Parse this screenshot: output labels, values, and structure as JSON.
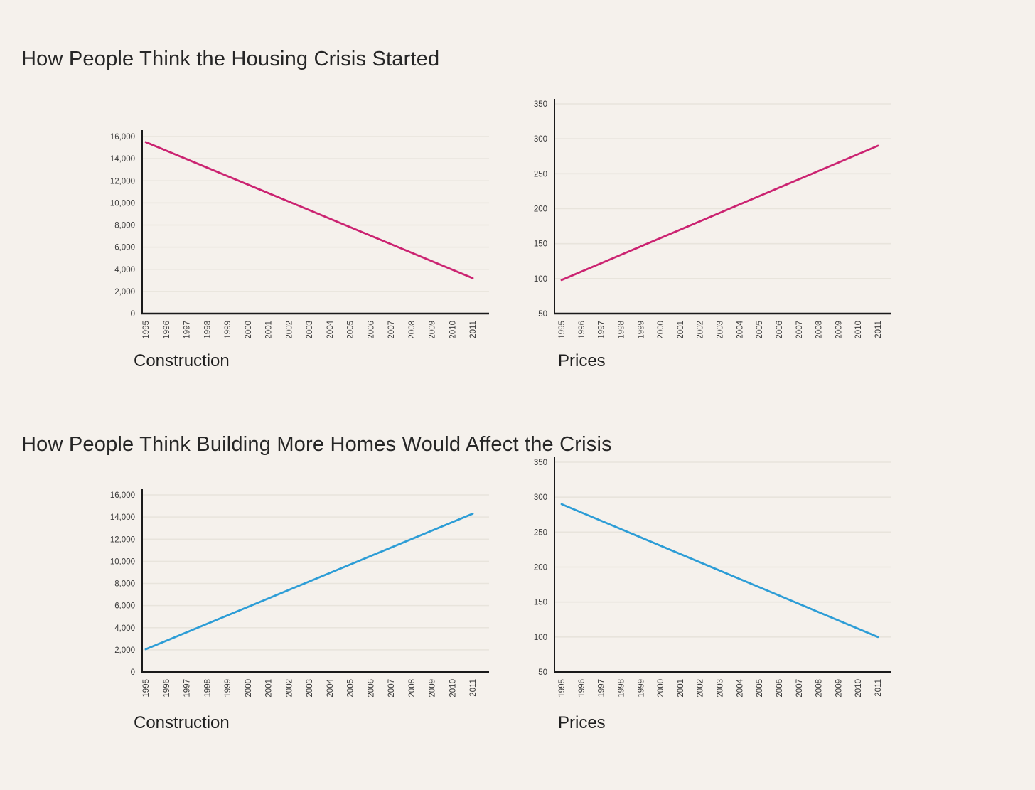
{
  "page": {
    "background_color": "#f5f1ec",
    "grid_color": "#e8e4dc",
    "axis_color": "#1a1a1a",
    "tick_label_color": "#3c3c3c",
    "pink": "#cb2371",
    "blue": "#2d9dd6"
  },
  "sections": [
    {
      "title": "How People Think the Housing Crisis Started"
    },
    {
      "title": "How People Think Building More Homes Would Affect the Crisis"
    }
  ],
  "chart_data": [
    {
      "id": "crisis-started-construction",
      "section": "How People Think the Housing Crisis Started",
      "type": "line",
      "caption": "Construction",
      "line_color": "#cb2371",
      "x": [
        1995,
        2011
      ],
      "y": [
        15500,
        3200
      ],
      "xlim": [
        1995,
        2011
      ],
      "ylim": [
        0,
        16000
      ],
      "xticks": [
        "1995",
        "1996",
        "1997",
        "1998",
        "1999",
        "2000",
        "2001",
        "2002",
        "2003",
        "2004",
        "2005",
        "2006",
        "2007",
        "2008",
        "2009",
        "2010",
        "2011"
      ],
      "ytick_values": [
        0,
        2000,
        4000,
        6000,
        8000,
        10000,
        12000,
        14000,
        16000
      ],
      "ytick_labels": [
        "0",
        "2,000",
        "4,000",
        "6,000",
        "8,000",
        "10,000",
        "12,000",
        "14,000",
        "16,000"
      ],
      "grid": true,
      "legend": "none"
    },
    {
      "id": "crisis-started-prices",
      "section": "How People Think the Housing Crisis Started",
      "type": "line",
      "caption": "Prices",
      "line_color": "#cb2371",
      "x": [
        1995,
        2011
      ],
      "y": [
        98,
        290
      ],
      "xlim": [
        1995,
        2011
      ],
      "ylim": [
        50,
        350
      ],
      "xticks": [
        "1995",
        "1996",
        "1997",
        "1998",
        "1999",
        "2000",
        "2001",
        "2002",
        "2003",
        "2004",
        "2005",
        "2006",
        "2007",
        "2008",
        "2009",
        "2010",
        "2011"
      ],
      "ytick_values": [
        50,
        100,
        150,
        200,
        250,
        300,
        350
      ],
      "ytick_labels": [
        "50",
        "100",
        "150",
        "200",
        "250",
        "300",
        "350"
      ],
      "grid": true,
      "legend": "none"
    },
    {
      "id": "building-more-construction",
      "section": "How People Think Building More Homes Would Affect the Crisis",
      "type": "line",
      "caption": "Construction",
      "line_color": "#2d9dd6",
      "x": [
        1995,
        2011
      ],
      "y": [
        2050,
        14300
      ],
      "xlim": [
        1995,
        2011
      ],
      "ylim": [
        0,
        16000
      ],
      "xticks": [
        "1995",
        "1996",
        "1997",
        "1998",
        "1999",
        "2000",
        "2001",
        "2002",
        "2003",
        "2004",
        "2005",
        "2006",
        "2007",
        "2008",
        "2009",
        "2010",
        "2011"
      ],
      "ytick_values": [
        0,
        2000,
        4000,
        6000,
        8000,
        10000,
        12000,
        14000,
        16000
      ],
      "ytick_labels": [
        "0",
        "2,000",
        "4,000",
        "6,000",
        "8,000",
        "10,000",
        "12,000",
        "14,000",
        "16,000"
      ],
      "grid": true,
      "legend": "none"
    },
    {
      "id": "building-more-prices",
      "section": "How People Think Building More Homes Would Affect the Crisis",
      "type": "line",
      "caption": "Prices",
      "line_color": "#2d9dd6",
      "x": [
        1995,
        2011
      ],
      "y": [
        290,
        100
      ],
      "xlim": [
        1995,
        2011
      ],
      "ylim": [
        50,
        350
      ],
      "xticks": [
        "1995",
        "1996",
        "1997",
        "1998",
        "1999",
        "2000",
        "2001",
        "2002",
        "2003",
        "2004",
        "2005",
        "2006",
        "2007",
        "2008",
        "2009",
        "2010",
        "2011"
      ],
      "ytick_values": [
        50,
        100,
        150,
        200,
        250,
        300,
        350
      ],
      "ytick_labels": [
        "50",
        "100",
        "150",
        "200",
        "250",
        "300",
        "350"
      ],
      "grid": true,
      "legend": "none"
    }
  ]
}
